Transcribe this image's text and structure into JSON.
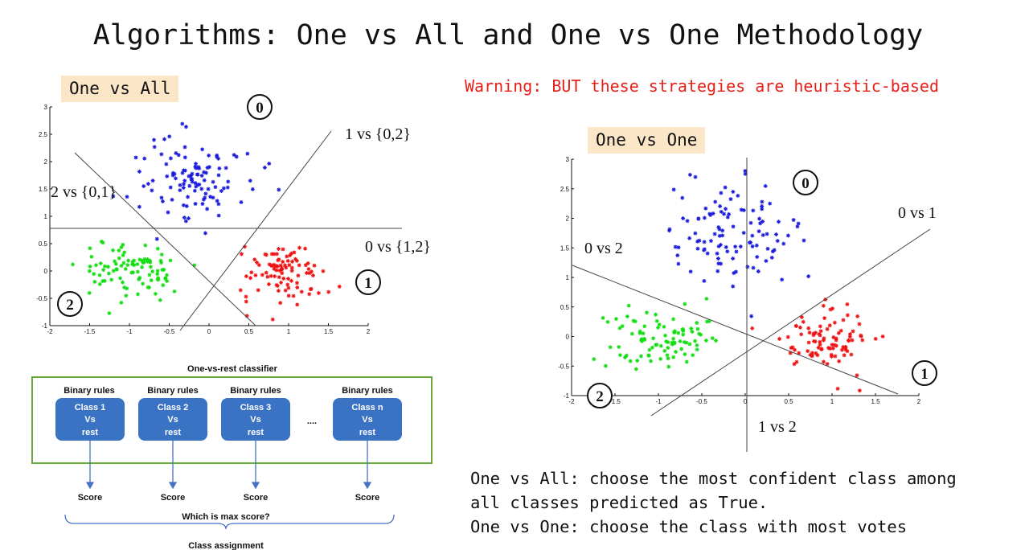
{
  "title": "Algorithms: One vs All and One vs One Methodology",
  "warning": "Warning: BUT these strategies are heuristic-based",
  "one_vs_all": {
    "tag": "One vs All",
    "lines": {
      "h": "0 vs {1,2}",
      "up": "1 vs {0,2}",
      "down": "2 vs {0,1}"
    },
    "classes": {
      "c0": "0",
      "c1": "1",
      "c2": "2"
    }
  },
  "one_vs_one": {
    "tag": "One vs One",
    "lines": {
      "a": "0 vs 1",
      "b": "0 vs 2",
      "c": "1 vs 2"
    },
    "classes": {
      "c0": "0",
      "c1": "1",
      "c2": "2"
    }
  },
  "diagram": {
    "title": "One-vs-rest classifier",
    "binary_label": "Binary rules",
    "classes": [
      {
        "line1": "Class 1",
        "line2": "Vs",
        "line3": "rest"
      },
      {
        "line1": "Class 2",
        "line2": "Vs",
        "line3": "rest"
      },
      {
        "line1": "Class 3",
        "line2": "Vs",
        "line3": "rest"
      },
      {
        "line1": "Class n",
        "line2": "Vs",
        "line3": "rest"
      }
    ],
    "ellipsis": "....",
    "score": "Score",
    "which": "Which is max score?",
    "assign": "Class assignment"
  },
  "notes": {
    "line1": "One vs All: choose the most confident class among",
    "line2": "all classes predicted as True.",
    "line3": "One vs One: choose the class with most votes"
  },
  "colors": {
    "blue": "#1a1adc",
    "red": "#ee1111",
    "green": "#11dd11",
    "box": "#3b73c4",
    "frame": "#6aaa3c",
    "arrow": "#4472c4",
    "tag_bg": "#fbe6c7",
    "warning": "#e8201a"
  },
  "charts": [
    {
      "x_ticks": [
        "-2",
        "-1.5",
        "-1",
        "-0.5",
        "0",
        "0.5",
        "1",
        "1.5",
        "2"
      ],
      "y_ticks": [
        "-1",
        "-0.5",
        "0",
        "0.5",
        "1",
        "1.5",
        "2",
        "2.5",
        "3"
      ],
      "xlim": [
        -2,
        2
      ],
      "ylim": [
        -1,
        3
      ]
    },
    {
      "x_ticks": [
        "-2",
        "-1.5",
        "-1",
        "-0.5",
        "0",
        "0.5",
        "1",
        "1.5",
        "2"
      ],
      "y_ticks": [
        "-1",
        "-0.5",
        "0",
        "0.5",
        "1",
        "1.5",
        "2",
        "2.5",
        "3"
      ],
      "xlim": [
        -2,
        2
      ],
      "ylim": [
        -1,
        3
      ]
    }
  ]
}
